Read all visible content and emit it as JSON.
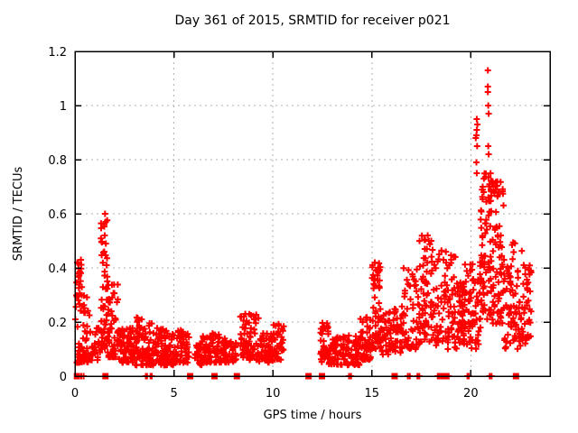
{
  "chart_data": {
    "type": "scatter",
    "title": "Day 361 of 2015, SRMTID for receiver p021",
    "xlabel": "GPS time / hours",
    "ylabel": "SRMTID / TECUs",
    "xlim": [
      0,
      24
    ],
    "ylim": [
      0,
      1.2
    ],
    "xticks": [
      0,
      5,
      10,
      15,
      20
    ],
    "xtick_labels": [
      "0",
      "5",
      "10",
      "15",
      "20"
    ],
    "yticks": [
      0,
      0.2,
      0.4,
      0.6,
      0.8,
      1,
      1.2
    ],
    "ytick_labels": [
      "0",
      "0.2",
      "0.4",
      "0.6",
      "0.8",
      "1",
      "1.2"
    ],
    "grid": true,
    "legend": "none",
    "marker_style": "plus",
    "zero_marker_style": "filled-square",
    "colors": {
      "marker": "#ff0000",
      "grid": "#b0b0b0",
      "border": "#000000",
      "background": "#ffffff"
    },
    "notable_points": [
      [
        0.02,
        0.21
      ],
      [
        0.12,
        0.42
      ],
      [
        0.2,
        0.38
      ],
      [
        0.3,
        0.43
      ],
      [
        1.48,
        0.46
      ],
      [
        1.5,
        0.52
      ],
      [
        1.52,
        0.6
      ],
      [
        1.55,
        0.57
      ],
      [
        1.56,
        0.49
      ],
      [
        1.6,
        0.41
      ],
      [
        15.15,
        0.42
      ],
      [
        15.22,
        0.39
      ],
      [
        17.78,
        0.47
      ],
      [
        17.82,
        0.52
      ],
      [
        17.88,
        0.5
      ],
      [
        18.4,
        0.45
      ],
      [
        18.62,
        0.43
      ],
      [
        20.25,
        0.88
      ],
      [
        20.28,
        0.89
      ],
      [
        20.28,
        0.79
      ],
      [
        20.3,
        0.95
      ],
      [
        20.3,
        0.91
      ],
      [
        20.3,
        0.75
      ],
      [
        20.32,
        0.85
      ],
      [
        20.33,
        0.93
      ],
      [
        20.6,
        0.7
      ],
      [
        20.65,
        0.68
      ],
      [
        20.86,
        1.13
      ],
      [
        20.86,
        1.07
      ],
      [
        20.86,
        1.05
      ],
      [
        20.88,
        1.0
      ],
      [
        20.88,
        0.85
      ],
      [
        20.9,
        0.97
      ],
      [
        20.9,
        0.82
      ],
      [
        21.1,
        0.72
      ],
      [
        21.15,
        0.7
      ]
    ],
    "bands": [
      [
        0.05,
        0.35,
        0.05,
        0.43,
        45,
        1.6
      ],
      [
        0.35,
        0.75,
        0.05,
        0.3,
        38,
        1.8
      ],
      [
        0.75,
        1.28,
        0.05,
        0.18,
        28,
        1.5
      ],
      [
        1.3,
        1.65,
        0.1,
        0.6,
        48,
        1.7
      ],
      [
        1.65,
        2.2,
        0.07,
        0.35,
        55,
        1.8
      ],
      [
        2.2,
        3.0,
        0.05,
        0.18,
        75,
        1.5
      ],
      [
        3.0,
        3.9,
        0.04,
        0.22,
        80,
        1.7
      ],
      [
        3.9,
        5.0,
        0.04,
        0.18,
        95,
        1.5
      ],
      [
        5.0,
        5.78,
        0.05,
        0.17,
        55,
        1.5
      ],
      [
        6.05,
        6.4,
        0.04,
        0.12,
        28,
        1.3
      ],
      [
        6.4,
        7.4,
        0.05,
        0.16,
        75,
        1.4
      ],
      [
        7.4,
        8.15,
        0.05,
        0.14,
        55,
        1.3
      ],
      [
        8.35,
        9.3,
        0.06,
        0.23,
        75,
        1.7
      ],
      [
        9.3,
        10.0,
        0.05,
        0.16,
        55,
        1.4
      ],
      [
        10.0,
        10.55,
        0.06,
        0.2,
        40,
        1.5
      ],
      [
        12.4,
        12.8,
        0.05,
        0.2,
        40,
        1.4
      ],
      [
        12.8,
        14.4,
        0.04,
        0.15,
        115,
        1.4
      ],
      [
        14.4,
        15.0,
        0.06,
        0.22,
        50,
        1.4
      ],
      [
        15.0,
        15.45,
        0.1,
        0.42,
        55,
        1.6
      ],
      [
        15.45,
        16.5,
        0.08,
        0.25,
        75,
        1.4
      ],
      [
        16.5,
        17.4,
        0.1,
        0.4,
        65,
        1.6
      ],
      [
        17.4,
        18.2,
        0.12,
        0.52,
        70,
        1.5
      ],
      [
        18.2,
        19.3,
        0.1,
        0.47,
        80,
        1.5
      ],
      [
        19.3,
        19.7,
        0.12,
        0.35,
        55,
        1.6
      ],
      [
        19.7,
        20.5,
        0.1,
        0.45,
        70,
        1.4
      ],
      [
        20.5,
        21.1,
        0.2,
        0.75,
        80,
        1.2
      ],
      [
        21.1,
        21.7,
        0.18,
        0.72,
        70,
        1.3
      ],
      [
        21.7,
        22.6,
        0.1,
        0.5,
        75,
        1.4
      ],
      [
        22.6,
        23.05,
        0.12,
        0.42,
        40,
        1.4
      ]
    ],
    "zero_squares": [
      0.1,
      1.54,
      5.82,
      7.05,
      8.18,
      11.8,
      12.48,
      16.15,
      18.6,
      22.28
    ],
    "zero_pluses": [
      0.32,
      0.44,
      3.58,
      3.64,
      3.82,
      3.88,
      13.85,
      13.95,
      16.82,
      16.92,
      17.3,
      17.4,
      18.33,
      18.4,
      18.5,
      18.72,
      18.8,
      18.88,
      19.83,
      19.9,
      20.95,
      21.05
    ]
  }
}
